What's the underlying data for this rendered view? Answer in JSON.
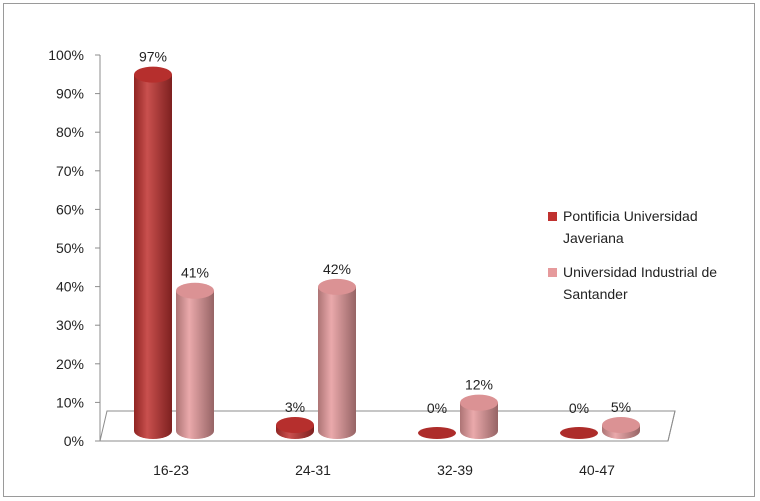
{
  "chart_data": {
    "type": "bar",
    "categories": [
      "16-23",
      "24-31",
      "32-39",
      "40-47"
    ],
    "series": [
      {
        "name": "Pontificia Universidad Javeriana",
        "values": [
          97,
          3,
          0,
          0
        ],
        "labels": [
          "97%",
          "3%",
          "0%",
          "0%"
        ],
        "color": "#c0312f"
      },
      {
        "name": "Universidad Industrial de Santander",
        "values": [
          41,
          42,
          12,
          5
        ],
        "labels": [
          "41%",
          "42%",
          "12%",
          "5%"
        ],
        "color": "#e69a9c"
      }
    ],
    "y_ticks": [
      "0%",
      "10%",
      "20%",
      "30%",
      "40%",
      "50%",
      "60%",
      "70%",
      "80%",
      "90%",
      "100%"
    ],
    "ylim": [
      0,
      100
    ],
    "legend_position": "right",
    "legend_lines": [
      [
        "Pontificia Universidad",
        "Javeriana"
      ],
      [
        "Universidad Industrial de",
        "Santander"
      ]
    ],
    "grid": false,
    "style": "3d-cylinder"
  }
}
